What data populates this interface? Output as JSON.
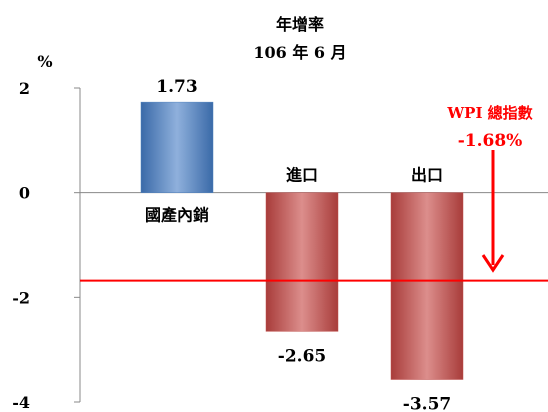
{
  "chart_data": {
    "type": "bar",
    "title": "年增率",
    "subtitle": "106 年 6 月",
    "ylabel": "%",
    "ylim": [
      -4,
      2
    ],
    "yticks": [
      "2",
      "0",
      "-2",
      "-4"
    ],
    "grid": false,
    "categories": [
      "國產內銷",
      "進口",
      "出口"
    ],
    "values": [
      1.73,
      -2.65,
      -3.57
    ],
    "value_labels": [
      "1.73",
      "-2.65",
      "-3.57"
    ],
    "bar_colors": [
      "#4f81bd",
      "#c0504d",
      "#c0504d"
    ],
    "reference_line": {
      "value": -1.68,
      "color": "#ff0000",
      "label_line1": "WPI 總指數",
      "label_line2": "-1.68%"
    }
  }
}
